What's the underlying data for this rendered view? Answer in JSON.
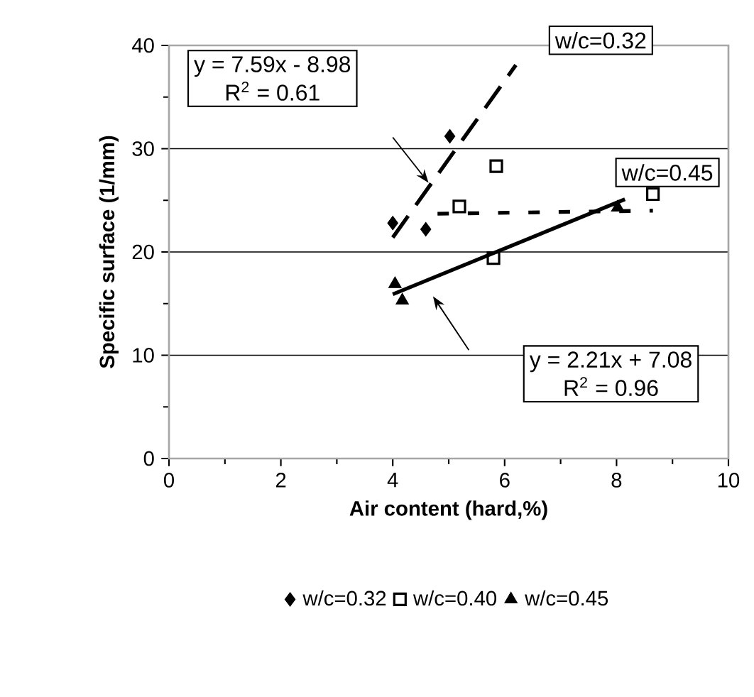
{
  "chart_data": {
    "type": "scatter",
    "xlabel": "Air content (hard,%)",
    "ylabel": "Specific surface (1/mm)",
    "xlim": [
      0,
      10
    ],
    "xticks": [
      0,
      2,
      4,
      6,
      8,
      10
    ],
    "ylim": [
      0,
      40
    ],
    "yticks": [
      0,
      10,
      20,
      30,
      40
    ],
    "grid": "y",
    "legend": "bottom",
    "series": [
      {
        "name": "w/c=0.32",
        "color": "#000000",
        "marker": "diamond",
        "x": [
          4.0,
          4.59,
          5.02
        ],
        "values": [
          22.8,
          22.2,
          31.2
        ]
      },
      {
        "name": "w/c=0.40",
        "color": "#000000",
        "marker": "square",
        "x": [
          5.19,
          5.85,
          5.8,
          8.65
        ],
        "values": [
          24.4,
          28.3,
          19.4,
          25.6
        ]
      },
      {
        "name": "w/c=0.45",
        "color": "#000000",
        "marker": "triangle",
        "x": [
          4.04,
          4.17,
          8.02
        ],
        "values": [
          16.9,
          15.3,
          24.3
        ]
      },
      {
        "type": "line",
        "color": "#000000",
        "marker": "none",
        "line_style": "dashed",
        "x": [
          4.0,
          6.2
        ],
        "values": [
          21.4,
          38.1
        ]
      },
      {
        "type": "line",
        "color": "#000000",
        "marker": "none",
        "line_style": "dotted",
        "x": [
          4.8,
          8.65
        ],
        "values": [
          23.7,
          24.0
        ]
      },
      {
        "type": "line",
        "color": "#000000",
        "marker": "none",
        "line_style": "solid",
        "x": [
          4.0,
          8.15
        ],
        "values": [
          15.9,
          25.1
        ]
      }
    ],
    "annotations": [
      "y = 7.59x - 8.98",
      "R$^{2}$ = 0.61",
      "w/c=0.32",
      "w/c=0.45",
      "y = 2.21x + 7.08",
      "R$^{2}$ = 0.96"
    ]
  }
}
